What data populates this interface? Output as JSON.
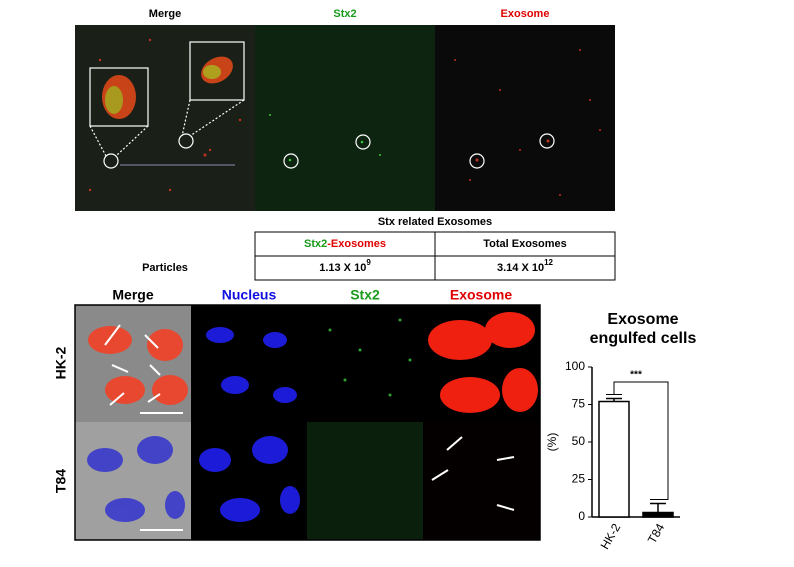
{
  "top_panel": {
    "labels": [
      "Merge",
      "Stx2",
      "Exosome"
    ]
  },
  "table": {
    "title": "Stx related Exosomes",
    "header": [
      [
        "Stx2",
        "-Exosomes"
      ],
      "Total Exosomes"
    ],
    "rows": [
      {
        "label": "Particles",
        "cells": [
          {
            "base": "1.13 X 10",
            "exponent": "9"
          },
          {
            "base": "3.14 X 10",
            "exponent": "12"
          }
        ]
      }
    ]
  },
  "bottom_panel": {
    "labels": [
      "Merge",
      "Nucleus",
      "Stx2",
      "Exosome"
    ],
    "rows": [
      "HK-2",
      "T84"
    ]
  },
  "chart_data": {
    "type": "bar",
    "title": "Exosome engulfed cells",
    "y_label": "(%)",
    "categories": [
      "HK-2",
      "T84"
    ],
    "values": [
      77,
      3
    ],
    "errors": [
      2,
      6
    ],
    "colors": [
      "#ffffff",
      "#000000"
    ],
    "edge_color": "#000000",
    "ylim": [
      0,
      100
    ],
    "yticks": [
      0,
      25,
      50,
      75,
      100
    ],
    "significance": "***"
  }
}
